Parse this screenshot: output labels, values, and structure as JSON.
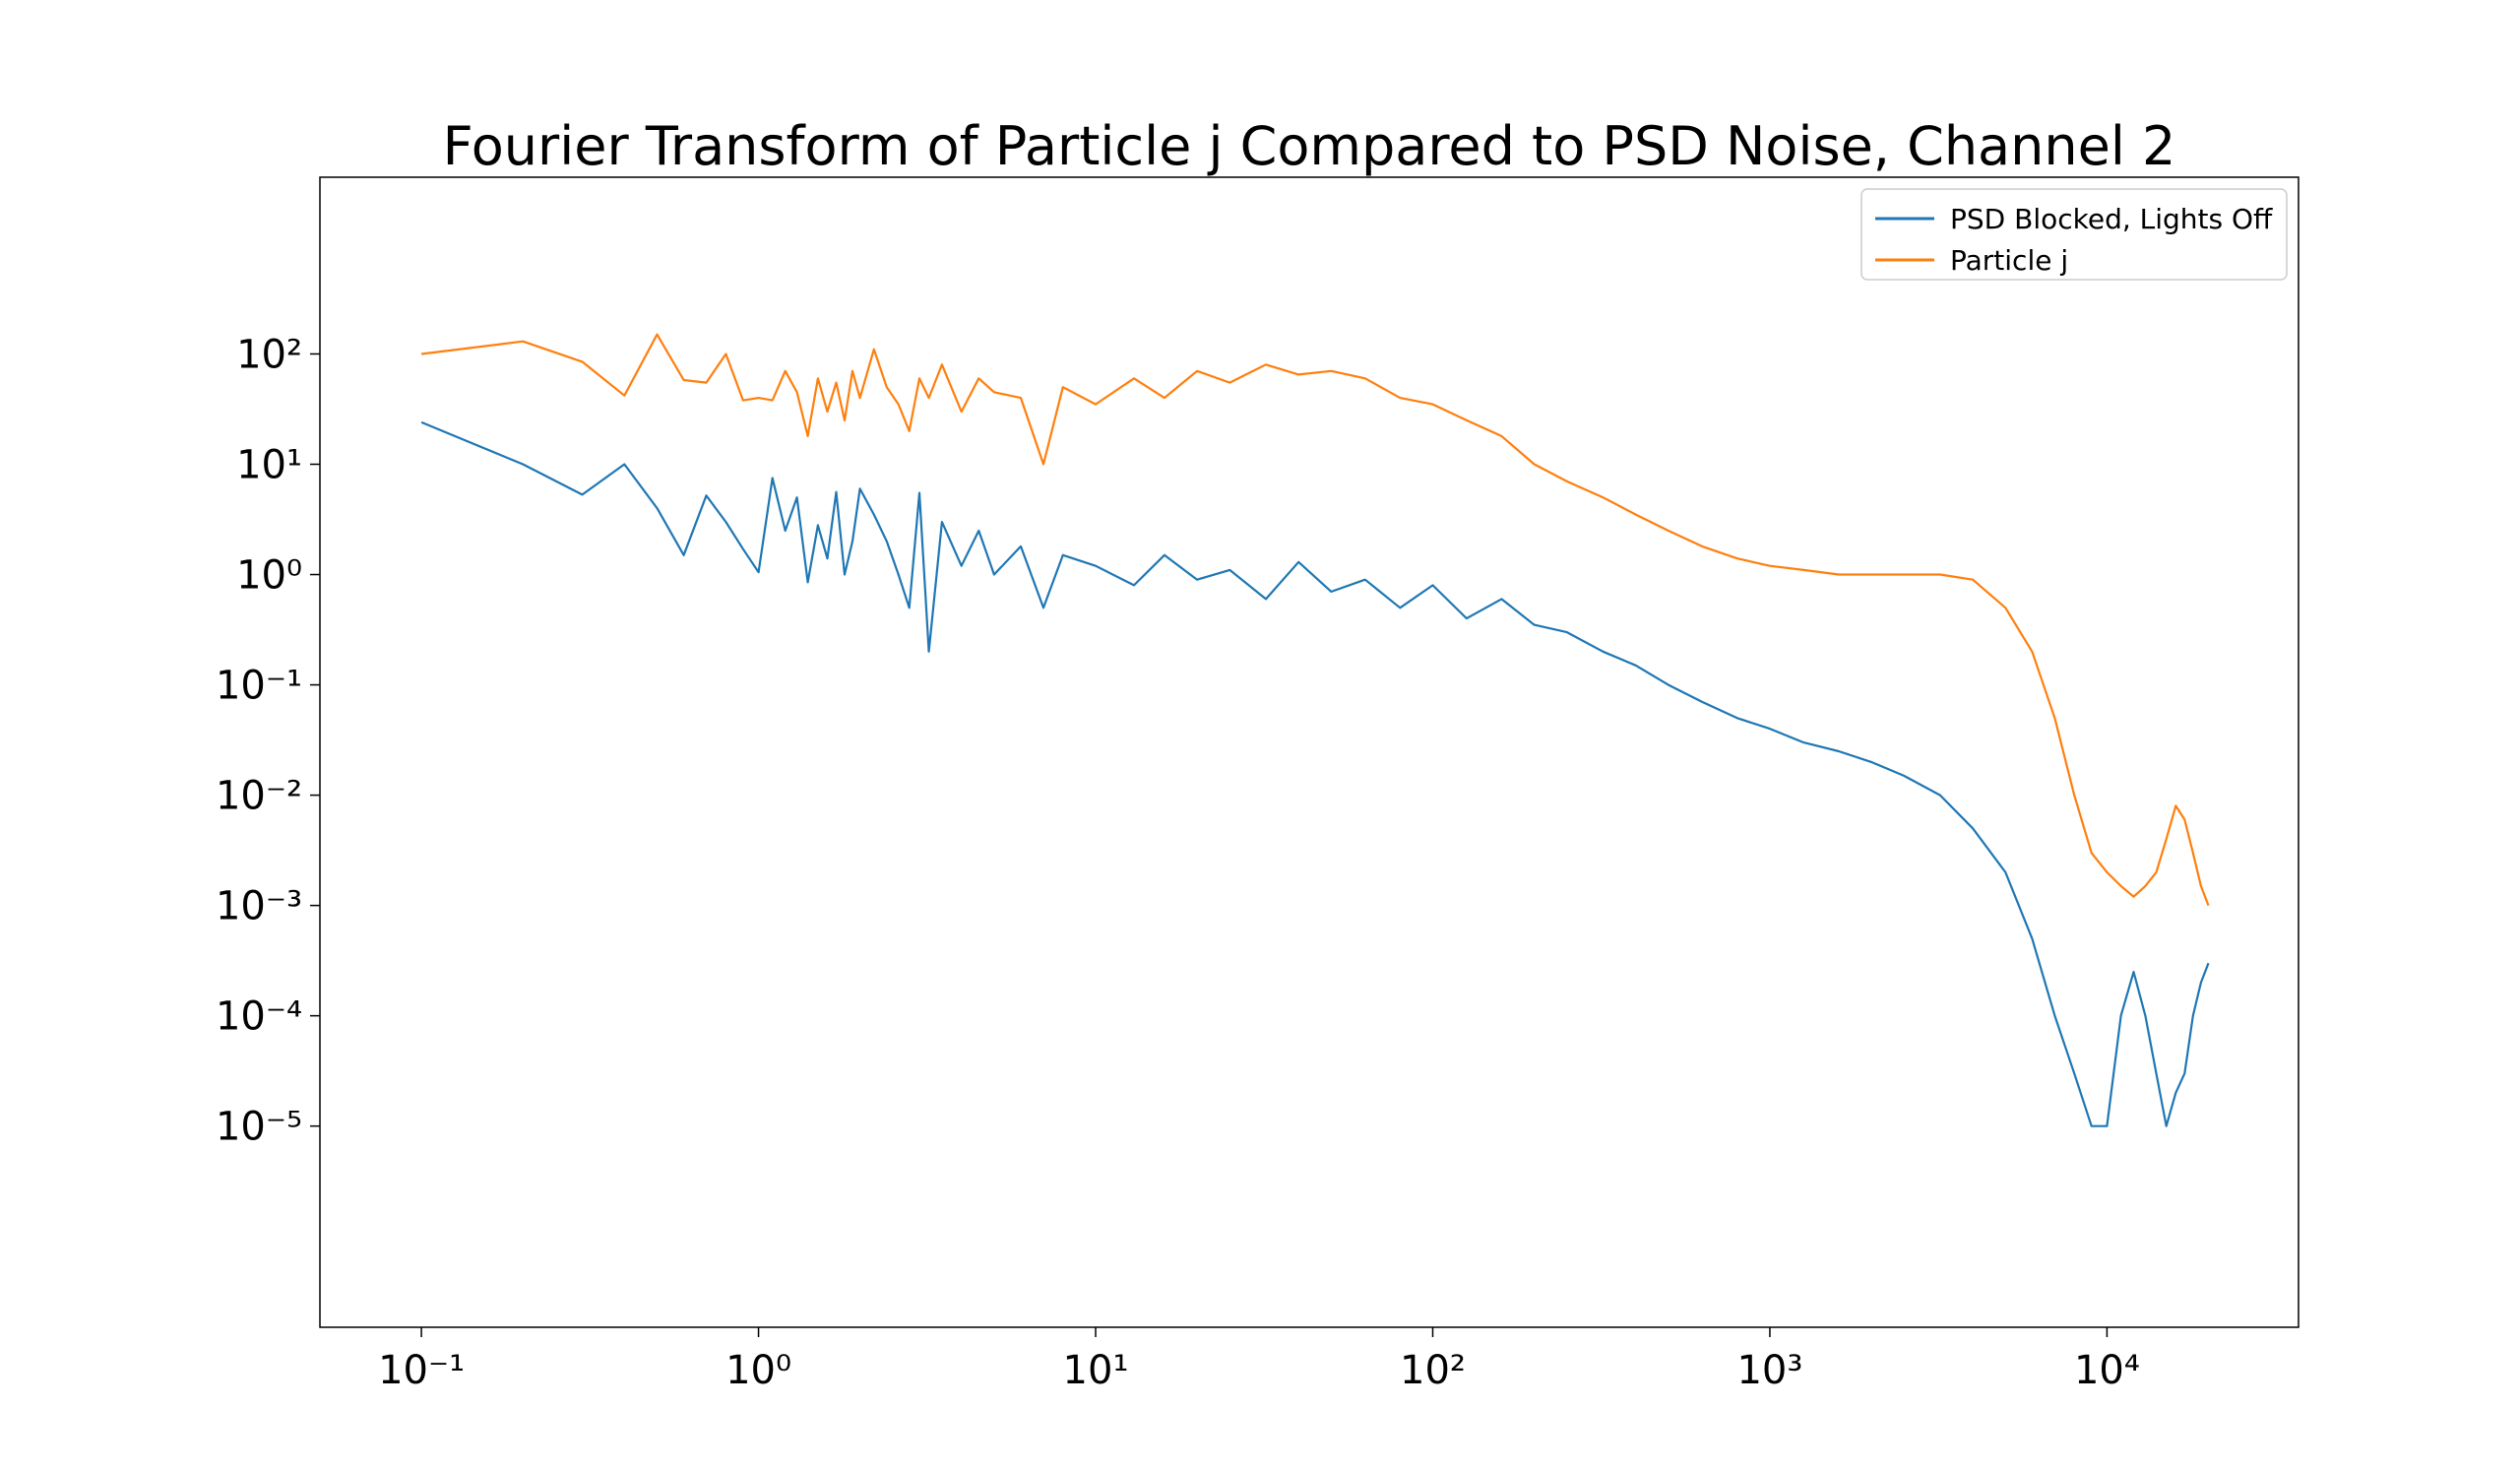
{
  "chart_data": {
    "type": "line",
    "title": "Fourier Transform of Particle j Compared to PSD Noise, Channel 2",
    "xlabel": "",
    "ylabel": "",
    "xscale": "log",
    "yscale": "log",
    "xlim": [
      0.05,
      37000
    ],
    "ylim": [
      1.5e-07,
      4000
    ],
    "x_ticks": [
      {
        "value": 0.1,
        "label": "10⁻¹"
      },
      {
        "value": 1,
        "label": "10⁰"
      },
      {
        "value": 10,
        "label": "10¹"
      },
      {
        "value": 100,
        "label": "10²"
      },
      {
        "value": 1000,
        "label": "10³"
      },
      {
        "value": 10000,
        "label": "10⁴"
      }
    ],
    "y_ticks": [
      {
        "value": 100,
        "label": "10²"
      },
      {
        "value": 10,
        "label": "10¹"
      },
      {
        "value": 1,
        "label": "10⁰"
      },
      {
        "value": 0.1,
        "label": "10⁻¹"
      },
      {
        "value": 0.01,
        "label": "10⁻²"
      },
      {
        "value": 0.001,
        "label": "10⁻³"
      },
      {
        "value": 0.0001,
        "label": "10⁻⁴"
      },
      {
        "value": 1e-05,
        "label": "10⁻⁵"
      }
    ],
    "grid": false,
    "legend": "top-right",
    "series": [
      {
        "name": "PSD Blocked, Lights Off",
        "color": "#1f77b4",
        "x": [
          0.1,
          0.2,
          0.3,
          0.4,
          0.5,
          0.6,
          0.7,
          0.8,
          0.9,
          1.0,
          1.1,
          1.2,
          1.3,
          1.4,
          1.5,
          1.6,
          1.7,
          1.8,
          1.9,
          2.0,
          2.2,
          2.4,
          2.6,
          2.8,
          3.0,
          3.2,
          3.5,
          4.0,
          4.5,
          5.0,
          6.0,
          7.0,
          8.0,
          10,
          13,
          16,
          20,
          25,
          32,
          40,
          50,
          63,
          80,
          100,
          126,
          160,
          200,
          250,
          320,
          400,
          500,
          630,
          800,
          1000,
          1260,
          1600,
          2000,
          2500,
          3200,
          4000,
          5000,
          6000,
          7000,
          8000,
          9000,
          10000,
          11000,
          12000,
          13000,
          14000,
          15000,
          16000,
          17000,
          18000,
          19000,
          20000
        ],
        "y": [
          24,
          10,
          5.3,
          10,
          4.0,
          1.5,
          5.2,
          3.0,
          1.7,
          1.05,
          7.5,
          2.5,
          5.0,
          0.85,
          2.8,
          1.4,
          5.6,
          1.0,
          2.0,
          6.0,
          3.5,
          2.0,
          1.0,
          0.5,
          5.5,
          0.2,
          3.0,
          1.2,
          2.5,
          1.0,
          1.8,
          0.5,
          1.5,
          1.2,
          0.8,
          1.5,
          0.9,
          1.1,
          0.6,
          1.3,
          0.7,
          0.9,
          0.5,
          0.8,
          0.4,
          0.6,
          0.35,
          0.3,
          0.2,
          0.15,
          0.1,
          0.07,
          0.05,
          0.04,
          0.03,
          0.025,
          0.02,
          0.015,
          0.01,
          0.005,
          0.002,
          0.0005,
          0.0001,
          3e-05,
          1e-05,
          1e-05,
          0.0001,
          0.00025,
          0.0001,
          3e-05,
          1e-05,
          2e-05,
          3e-05,
          0.0001,
          0.0002,
          0.0003
        ]
      },
      {
        "name": "Particle j",
        "color": "#ff7f0e",
        "x": [
          0.1,
          0.2,
          0.3,
          0.4,
          0.5,
          0.6,
          0.7,
          0.8,
          0.9,
          1.0,
          1.1,
          1.2,
          1.3,
          1.4,
          1.5,
          1.6,
          1.7,
          1.8,
          1.9,
          2.0,
          2.2,
          2.4,
          2.6,
          2.8,
          3.0,
          3.2,
          3.5,
          4.0,
          4.5,
          5.0,
          6.0,
          7.0,
          8.0,
          10,
          13,
          16,
          20,
          25,
          32,
          40,
          50,
          63,
          80,
          100,
          126,
          160,
          200,
          250,
          320,
          400,
          500,
          630,
          800,
          1000,
          1260,
          1600,
          2000,
          2500,
          3200,
          4000,
          5000,
          6000,
          7000,
          8000,
          9000,
          10000,
          11000,
          12000,
          13000,
          14000,
          15000,
          16000,
          17000,
          18000,
          19000,
          20000
        ],
        "y": [
          100,
          130,
          85,
          42,
          150,
          58,
          55,
          100,
          38,
          40,
          38,
          70,
          45,
          18,
          60,
          30,
          55,
          25,
          70,
          40,
          110,
          50,
          35,
          20,
          60,
          40,
          80,
          30,
          60,
          45,
          40,
          10,
          50,
          35,
          60,
          40,
          70,
          55,
          80,
          65,
          70,
          60,
          40,
          35,
          25,
          18,
          10,
          7,
          5,
          3.5,
          2.5,
          1.8,
          1.4,
          1.2,
          1.1,
          1.0,
          1.0,
          1.0,
          1.0,
          0.9,
          0.5,
          0.2,
          0.05,
          0.01,
          0.003,
          0.002,
          0.0015,
          0.0012,
          0.0015,
          0.002,
          0.004,
          0.008,
          0.006,
          0.003,
          0.0015,
          0.001
        ]
      }
    ]
  }
}
